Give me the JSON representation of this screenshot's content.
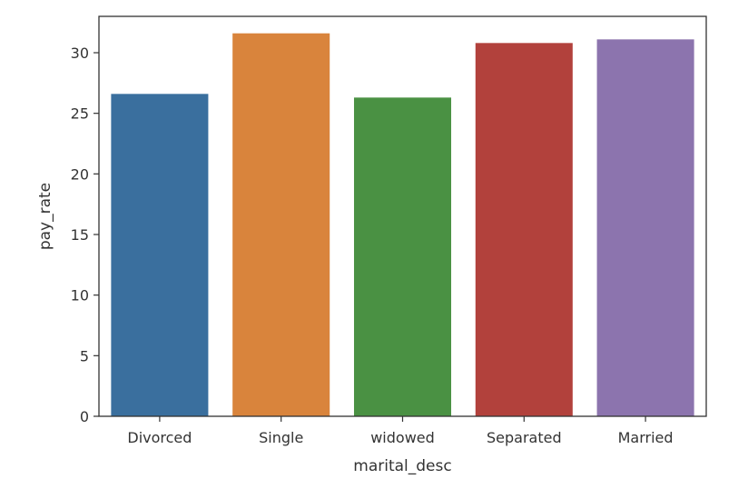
{
  "chart_data": {
    "type": "bar",
    "categories": [
      "Divorced",
      "Single",
      "widowed",
      "Separated",
      "Married"
    ],
    "values": [
      26.6,
      31.6,
      26.3,
      30.8,
      31.1
    ],
    "colors": [
      "#3a6f9e",
      "#d9843c",
      "#4a9143",
      "#b2413c",
      "#8c74ae"
    ],
    "xlabel": "marital_desc",
    "ylabel": "pay_rate",
    "ylim": [
      0,
      33
    ],
    "yticks": [
      0,
      5,
      10,
      15,
      20,
      25,
      30
    ],
    "grid": false
  }
}
